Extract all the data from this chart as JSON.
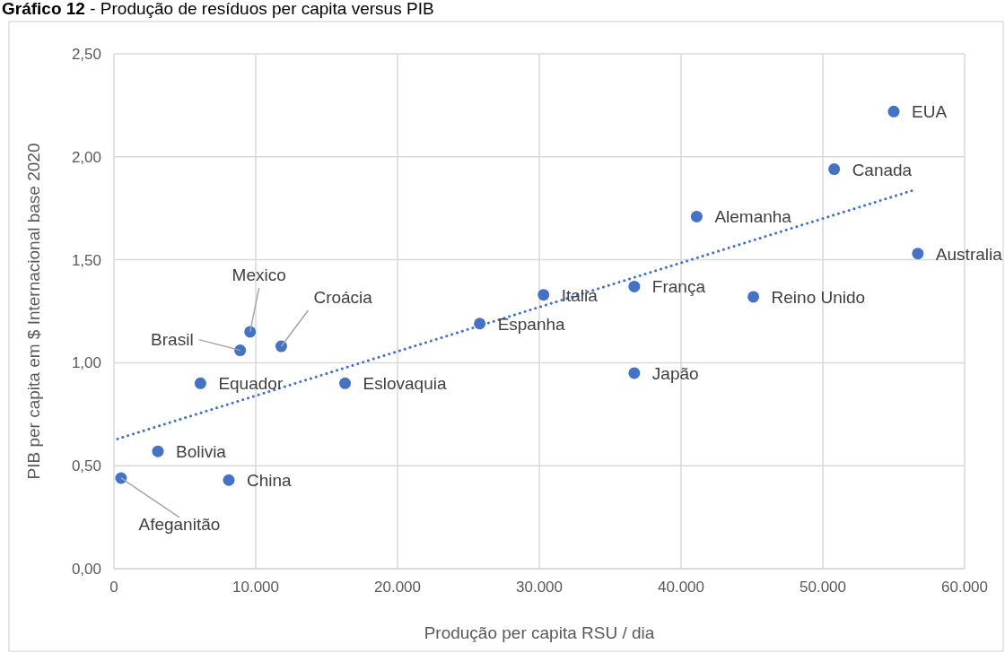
{
  "chart_data": {
    "type": "scatter",
    "title": "Gráfico 12 - Produção de resíduos per capita versus PIB",
    "xlabel": "Produção per capita RSU / dia",
    "ylabel": "PIB per capita em $ Internacional base 2020",
    "xlim": [
      0,
      60000
    ],
    "ylim": [
      0,
      2.5
    ],
    "xticks": [
      {
        "value": 0,
        "label": "0"
      },
      {
        "value": 10000,
        "label": "10.000"
      },
      {
        "value": 20000,
        "label": "20.000"
      },
      {
        "value": 30000,
        "label": "30.000"
      },
      {
        "value": 40000,
        "label": "40.000"
      },
      {
        "value": 50000,
        "label": "50.000"
      },
      {
        "value": 60000,
        "label": "60.000"
      }
    ],
    "yticks": [
      {
        "value": 0,
        "label": "0,00"
      },
      {
        "value": 0.5,
        "label": "0,50"
      },
      {
        "value": 1,
        "label": "1,00"
      },
      {
        "value": 1.5,
        "label": "1,50"
      },
      {
        "value": 2,
        "label": "2,00"
      },
      {
        "value": 2.5,
        "label": "2,50"
      }
    ],
    "grid": true,
    "series": [
      {
        "color": "#4472c4",
        "marker": "circle",
        "x": [
          500,
          3100,
          8100,
          6100,
          8900,
          9600,
          11800,
          16300,
          25800,
          30300,
          36700,
          36700,
          41100,
          45100,
          50800,
          55000,
          56700
        ],
        "values": [
          0.44,
          0.57,
          0.43,
          0.9,
          1.06,
          1.15,
          1.08,
          0.9,
          1.19,
          1.33,
          1.37,
          0.95,
          1.71,
          1.32,
          1.94,
          2.22,
          1.53
        ]
      },
      {
        "type": "line",
        "color": "#4472c4",
        "line_style": "dotted",
        "x": [
          250,
          56500
        ],
        "values": [
          0.63,
          1.84
        ]
      }
    ],
    "annotations": [
      {
        "text": "Afeganitão",
        "x": 500,
        "y": 0.44
      },
      {
        "text": "Bolivia",
        "x": 3100,
        "y": 0.57
      },
      {
        "text": "China",
        "x": 8100,
        "y": 0.43
      },
      {
        "text": "Equador",
        "x": 6100,
        "y": 0.9
      },
      {
        "text": "Brasil",
        "x": 8900,
        "y": 1.06
      },
      {
        "text": "Mexico",
        "x": 9600,
        "y": 1.15
      },
      {
        "text": "Croácia",
        "x": 11800,
        "y": 1.08
      },
      {
        "text": "Eslovaquia",
        "x": 16300,
        "y": 0.9
      },
      {
        "text": "Espanha",
        "x": 25800,
        "y": 1.19
      },
      {
        "text": "Italia",
        "x": 30300,
        "y": 1.33
      },
      {
        "text": "França",
        "x": 36700,
        "y": 1.37
      },
      {
        "text": "Japão",
        "x": 36700,
        "y": 0.95
      },
      {
        "text": "Alemanha",
        "x": 41100,
        "y": 1.71
      },
      {
        "text": "Reino Unido",
        "x": 45100,
        "y": 1.32
      },
      {
        "text": "Canada",
        "x": 50800,
        "y": 1.94
      },
      {
        "text": "EUA",
        "x": 55000,
        "y": 2.22
      },
      {
        "text": "Australia",
        "x": 56700,
        "y": 1.53
      }
    ]
  }
}
